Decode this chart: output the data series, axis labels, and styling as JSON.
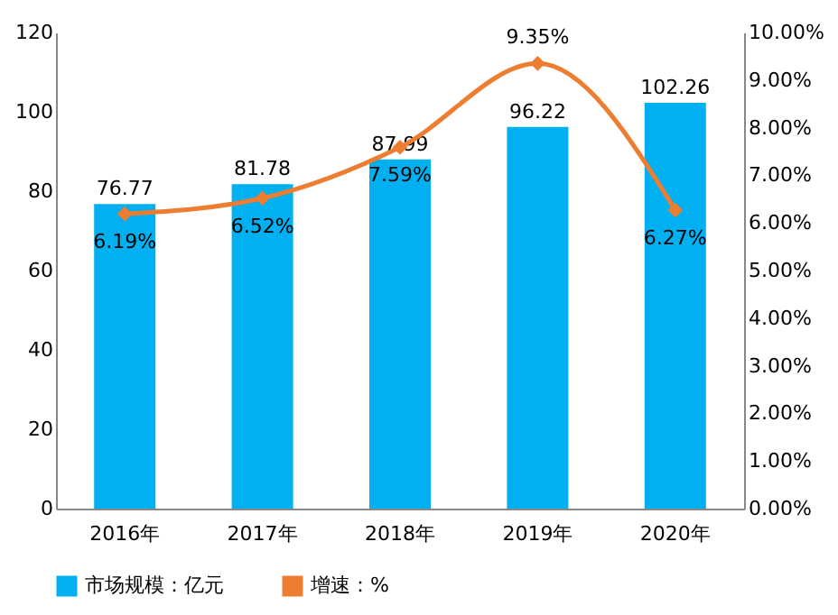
{
  "chart_data": {
    "type": "bar",
    "categories": [
      "2016年",
      "2017年",
      "2018年",
      "2019年",
      "2020年"
    ],
    "series": [
      {
        "name": "市场规模：亿元",
        "color": "#00b0f0",
        "values": [
          76.77,
          81.78,
          87.99,
          96.22,
          102.26
        ],
        "value_labels": [
          "76.77",
          "81.78",
          "87.99",
          "96.22",
          "102.26"
        ]
      },
      {
        "name": "增速：%",
        "type": "line",
        "axis": "y2",
        "color": "#ed7d31",
        "marker": "diamond",
        "line_style": "solid",
        "values": [
          6.19,
          6.52,
          7.59,
          9.35,
          6.27
        ],
        "value_labels": [
          "6.19%",
          "6.52%",
          "7.59%",
          "9.35%",
          "6.27%"
        ]
      }
    ],
    "ylim": [
      0,
      120
    ],
    "yticks": [
      0,
      20,
      40,
      60,
      80,
      100,
      120
    ],
    "y2lim": [
      0,
      10
    ],
    "y2ticks": [
      {
        "value": 0,
        "label": "0.00%"
      },
      {
        "value": 1,
        "label": "1.00%"
      },
      {
        "value": 2,
        "label": "2.00%"
      },
      {
        "value": 3,
        "label": "3.00%"
      },
      {
        "value": 4,
        "label": "4.00%"
      },
      {
        "value": 5,
        "label": "5.00%"
      },
      {
        "value": 6,
        "label": "6.00%"
      },
      {
        "value": 7,
        "label": "7.00%"
      },
      {
        "value": 8,
        "label": "8.00%"
      },
      {
        "value": 9,
        "label": "9.00%"
      },
      {
        "value": 10,
        "label": "10.00%"
      }
    ],
    "grid": false,
    "legend": "bottom"
  }
}
